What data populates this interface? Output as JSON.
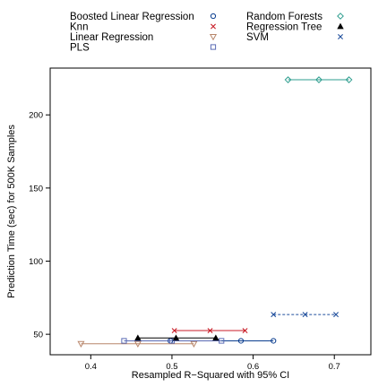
{
  "chart_data": {
    "type": "scatter",
    "title": "",
    "xlabel": "Resampled R−Squared with 95% CI",
    "ylabel": "Prediction Time (sec) for 500K Samples",
    "xlim": [
      0.35,
      0.745
    ],
    "ylim": [
      36,
      232
    ],
    "xticks": [
      {
        "value": 0.4,
        "label": "0.4"
      },
      {
        "value": 0.5,
        "label": "0.5"
      },
      {
        "value": 0.6,
        "label": "0.6"
      },
      {
        "value": 0.7,
        "label": "0.7"
      }
    ],
    "yticks": [
      {
        "value": 50,
        "label": "50"
      },
      {
        "value": 100,
        "label": "100"
      },
      {
        "value": 150,
        "label": "150"
      },
      {
        "value": 200,
        "label": "200"
      }
    ],
    "grid": false,
    "legend_position": "top",
    "series": [
      {
        "name": "Boosted Linear Regression",
        "marker": "circle",
        "color": "#0a3d8f",
        "line_style": "solid",
        "y": 45.5,
        "lower": 0.498,
        "estimate": 0.585,
        "upper": 0.625
      },
      {
        "name": "Knn",
        "marker": "x",
        "color": "#c81e28",
        "line_style": "solid",
        "y": 52.5,
        "lower": 0.503,
        "estimate": 0.547,
        "upper": 0.59
      },
      {
        "name": "Linear Regression",
        "marker": "triangle-down",
        "color": "#b8866a",
        "line_style": "solid",
        "y": 43.5,
        "lower": 0.388,
        "estimate": 0.458,
        "upper": 0.527
      },
      {
        "name": "PLS",
        "marker": "square",
        "color": "#5b6bb5",
        "line_style": "solid",
        "y": 45.5,
        "lower": 0.441,
        "estimate": 0.5,
        "upper": 0.561
      },
      {
        "name": "Random Forests",
        "marker": "diamond",
        "color": "#2e9e8f",
        "line_style": "solid",
        "y": 224,
        "lower": 0.643,
        "estimate": 0.681,
        "upper": 0.718
      },
      {
        "name": "Regression Tree",
        "marker": "triangle-up",
        "color": "#000000",
        "line_style": "solid",
        "y": 47.5,
        "lower": 0.458,
        "estimate": 0.505,
        "upper": 0.554
      },
      {
        "name": "SVM",
        "marker": "x",
        "color": "#1f4e9c",
        "line_style": "dashed",
        "y": 63.5,
        "lower": 0.625,
        "estimate": 0.664,
        "upper": 0.702
      }
    ]
  }
}
